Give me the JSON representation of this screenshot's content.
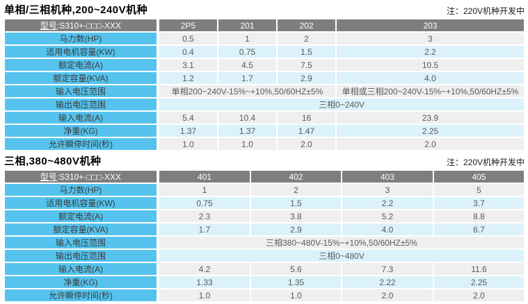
{
  "colors": {
    "header_bg": "#7e7e7e",
    "header_text": "#ffffff",
    "label_bg": "#55c3ee",
    "row_gray_bg": "#efefef",
    "row_blue_bg": "#dcf2fb",
    "cell_text": "#595959"
  },
  "tables": [
    {
      "title": "单相/三相机种,200~240V机种",
      "note": "注：220V机种开发中",
      "header": {
        "model_underlined": "型号",
        "model_rest": ":S310+-□□□-XXX",
        "columns": [
          "2P5",
          "201",
          "202",
          "203"
        ]
      },
      "rows": [
        {
          "label": "马力数(HP)",
          "values": [
            "0.5",
            "1",
            "2",
            "3"
          ]
        },
        {
          "label": "适用电机容量(KW)",
          "values": [
            "0.4",
            "0.75",
            "1.5",
            "2.2"
          ]
        },
        {
          "label": "额定电流(A)",
          "values": [
            "3.1",
            "4.5",
            "7.5",
            "10.5"
          ]
        },
        {
          "label": "额定容量(KVA)",
          "values": [
            "1.2",
            "1.7",
            "2.9",
            "4.0"
          ]
        },
        {
          "label": "输入电压范围",
          "merged": [
            {
              "span": 3,
              "text": "单相200~240V-15%~+10%,50/60HZ±5%"
            },
            {
              "span": 1,
              "text": "单相或三相200~240V-15%~+10%,50/60HZ±5%"
            }
          ]
        },
        {
          "label": "输出电压范围",
          "merged": [
            {
              "span": 4,
              "text": "三相0~240V"
            }
          ]
        },
        {
          "label": "输入电流(A)",
          "values": [
            "5.4",
            "10.4",
            "16",
            "23.9"
          ]
        },
        {
          "label": "净重(KG)",
          "values": [
            "1.37",
            "1.37",
            "1.47",
            "2.25"
          ]
        },
        {
          "label": "允许瞬停时间(秒)",
          "values": [
            "1.0",
            "1.0",
            "2.0",
            "2.0"
          ]
        }
      ]
    },
    {
      "title": "三相,380~480V机种",
      "note": "注：220V机种开发中",
      "header": {
        "model_underlined": "型号",
        "model_rest": ":S310+-□□□-XXX",
        "columns": [
          "401",
          "402",
          "403",
          "405"
        ]
      },
      "rows": [
        {
          "label": "马力数(HP)",
          "values": [
            "1",
            "2",
            "3",
            "5"
          ]
        },
        {
          "label": "适用电机容量(KW)",
          "values": [
            "0.75",
            "1.5",
            "2.2",
            "3.7"
          ]
        },
        {
          "label": "额定电流(A)",
          "values": [
            "2.3",
            "3.8",
            "5.2",
            "8.8"
          ]
        },
        {
          "label": "额定容量(KVA)",
          "values": [
            "1.7",
            "2.9",
            "4.0",
            "6.7"
          ]
        },
        {
          "label": "输入电压范围",
          "merged": [
            {
              "span": 4,
              "text": "三相380~480V-15%~+10%,50/60HZ±5%"
            }
          ]
        },
        {
          "label": "输出电压范围",
          "merged": [
            {
              "span": 4,
              "text": "三相0~480V"
            }
          ]
        },
        {
          "label": "输入电流(A)",
          "values": [
            "4.2",
            "5.6",
            "7.3",
            "11.6"
          ]
        },
        {
          "label": "净重(KG)",
          "values": [
            "1.33",
            "1.35",
            "2.22",
            "2.25"
          ]
        },
        {
          "label": "允许瞬停时间(秒)",
          "values": [
            "1.0",
            "1.0",
            "2.0",
            "2.0"
          ]
        }
      ]
    }
  ]
}
